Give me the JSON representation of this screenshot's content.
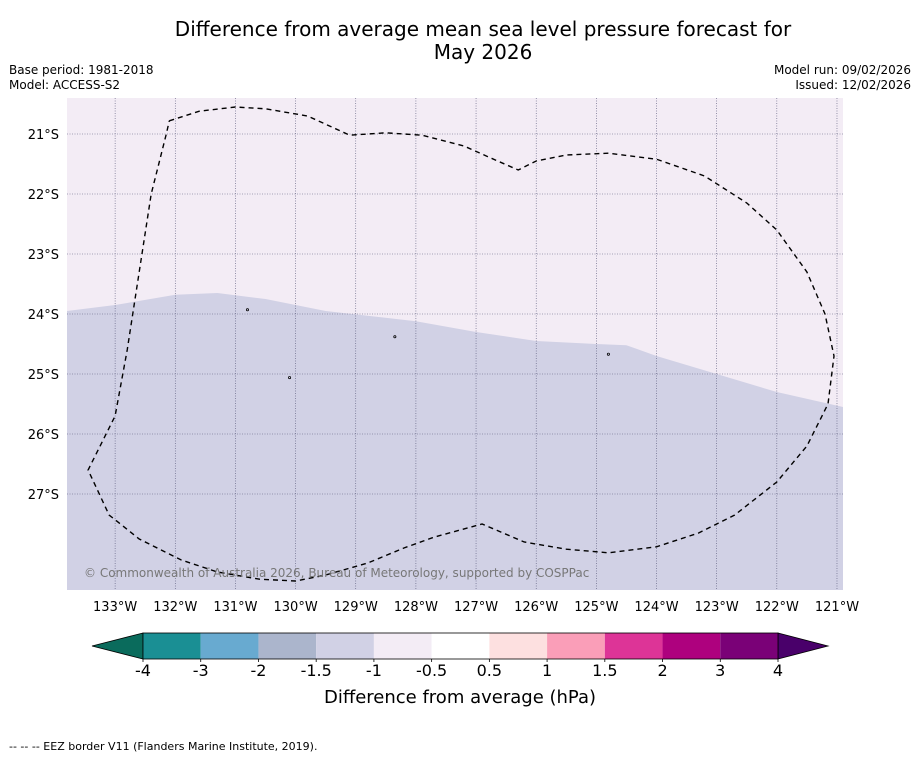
{
  "title": {
    "line1": "Difference from average mean sea level pressure forecast for",
    "line2": "May 2026"
  },
  "meta": {
    "base_period": "Base period: 1981-2018",
    "model": "Model: ACCESS-S2",
    "model_run": "Model run: 09/02/2026",
    "issued": "Issued: 12/02/2026"
  },
  "map": {
    "lon_range": [
      -133.8,
      -120.9
    ],
    "lat_range": [
      -28.6,
      -20.4
    ],
    "longitude_ticks": [
      {
        "value": -133,
        "label": "133°W"
      },
      {
        "value": -132,
        "label": "132°W"
      },
      {
        "value": -131,
        "label": "131°W"
      },
      {
        "value": -130,
        "label": "130°W"
      },
      {
        "value": -129,
        "label": "129°W"
      },
      {
        "value": -128,
        "label": "128°W"
      },
      {
        "value": -127,
        "label": "127°W"
      },
      {
        "value": -126,
        "label": "126°W"
      },
      {
        "value": -125,
        "label": "125°W"
      },
      {
        "value": -124,
        "label": "124°W"
      },
      {
        "value": -123,
        "label": "123°W"
      },
      {
        "value": -122,
        "label": "122°W"
      },
      {
        "value": -121,
        "label": "121°W"
      }
    ],
    "latitude_ticks": [
      {
        "value": -21,
        "label": "21°S"
      },
      {
        "value": -22,
        "label": "22°S"
      },
      {
        "value": -23,
        "label": "23°S"
      },
      {
        "value": -24,
        "label": "24°S"
      },
      {
        "value": -25,
        "label": "25°S"
      },
      {
        "value": -26,
        "label": "26°S"
      },
      {
        "value": -27,
        "label": "27°S"
      }
    ],
    "regions": [
      {
        "name": "-1 to -0.5 hPa",
        "color": "#f3ecf5"
      },
      {
        "name": "-1.5 to -1 hPa",
        "color": "#d1d1e5"
      }
    ],
    "boundary_lat_profile": [
      {
        "lon": -133.8,
        "lat": -23.95
      },
      {
        "lon": -133.0,
        "lat": -23.85
      },
      {
        "lon": -132.0,
        "lat": -23.68
      },
      {
        "lon": -131.3,
        "lat": -23.65
      },
      {
        "lon": -130.5,
        "lat": -23.75
      },
      {
        "lon": -129.5,
        "lat": -23.95
      },
      {
        "lon": -128.0,
        "lat": -24.12
      },
      {
        "lon": -127.0,
        "lat": -24.3
      },
      {
        "lon": -126.0,
        "lat": -24.45
      },
      {
        "lon": -125.0,
        "lat": -24.5
      },
      {
        "lon": -124.5,
        "lat": -24.52
      },
      {
        "lon": -124.0,
        "lat": -24.7
      },
      {
        "lon": -123.0,
        "lat": -25.0
      },
      {
        "lon": -122.0,
        "lat": -25.3
      },
      {
        "lon": -120.9,
        "lat": -25.55
      }
    ],
    "eez_border": [
      [
        -132.1,
        -20.78
      ],
      [
        -131.6,
        -20.62
      ],
      [
        -131.0,
        -20.55
      ],
      [
        -130.5,
        -20.58
      ],
      [
        -129.8,
        -20.7
      ],
      [
        -129.1,
        -21.02
      ],
      [
        -128.5,
        -20.98
      ],
      [
        -127.9,
        -21.02
      ],
      [
        -127.2,
        -21.2
      ],
      [
        -126.8,
        -21.38
      ],
      [
        -126.3,
        -21.6
      ],
      [
        -126.0,
        -21.45
      ],
      [
        -125.5,
        -21.35
      ],
      [
        -124.8,
        -21.32
      ],
      [
        -124.0,
        -21.42
      ],
      [
        -123.2,
        -21.7
      ],
      [
        -122.5,
        -22.15
      ],
      [
        -122.0,
        -22.6
      ],
      [
        -121.5,
        -23.3
      ],
      [
        -121.2,
        -24.0
      ],
      [
        -121.05,
        -24.7
      ],
      [
        -121.15,
        -25.5
      ],
      [
        -121.5,
        -26.2
      ],
      [
        -122.0,
        -26.8
      ],
      [
        -122.7,
        -27.35
      ],
      [
        -123.3,
        -27.65
      ],
      [
        -124.0,
        -27.88
      ],
      [
        -124.8,
        -27.98
      ],
      [
        -125.5,
        -27.92
      ],
      [
        -126.2,
        -27.8
      ],
      [
        -126.9,
        -27.5
      ],
      [
        -127.7,
        -27.72
      ],
      [
        -128.2,
        -27.9
      ],
      [
        -128.8,
        -28.15
      ],
      [
        -129.5,
        -28.35
      ],
      [
        -130.0,
        -28.45
      ],
      [
        -130.6,
        -28.42
      ],
      [
        -131.3,
        -28.3
      ],
      [
        -131.9,
        -28.1
      ],
      [
        -132.6,
        -27.75
      ],
      [
        -133.1,
        -27.35
      ],
      [
        -133.45,
        -26.6
      ],
      [
        -133.0,
        -25.7
      ],
      [
        -132.8,
        -24.6
      ],
      [
        -132.6,
        -23.3
      ],
      [
        -132.4,
        -22.0
      ],
      [
        -132.15,
        -21.0
      ],
      [
        -132.1,
        -20.78
      ]
    ],
    "islands": [
      {
        "lon": -130.8,
        "lat": -23.93
      },
      {
        "lon": -128.35,
        "lat": -24.38
      },
      {
        "lon": -130.1,
        "lat": -25.06
      },
      {
        "lon": -124.8,
        "lat": -24.67
      }
    ],
    "copyright": "© Commonwealth of Australia 2026, Bureau of Meteorology, supported by COSPPac"
  },
  "colorbar": {
    "label": "Difference from average (hPa)",
    "colors": [
      "#1a8f94",
      "#68aad0",
      "#abb5cc",
      "#d1d1e5",
      "#f3ecf5",
      "#ffffff",
      "#fde0e0",
      "#fa9eb8",
      "#dd3497",
      "#ae017e",
      "#7a0177"
    ],
    "extend_min_color": "#0a6b5c",
    "extend_max_color": "#49006a",
    "tick_labels": [
      "-4",
      "-3",
      "-2",
      "-1.5",
      "-1",
      "-0.5",
      "0.5",
      "1",
      "1.5",
      "2",
      "3",
      "4"
    ]
  },
  "footnote": "--  --  -- EEZ border V11 (Flanders Marine Institute, 2019)."
}
